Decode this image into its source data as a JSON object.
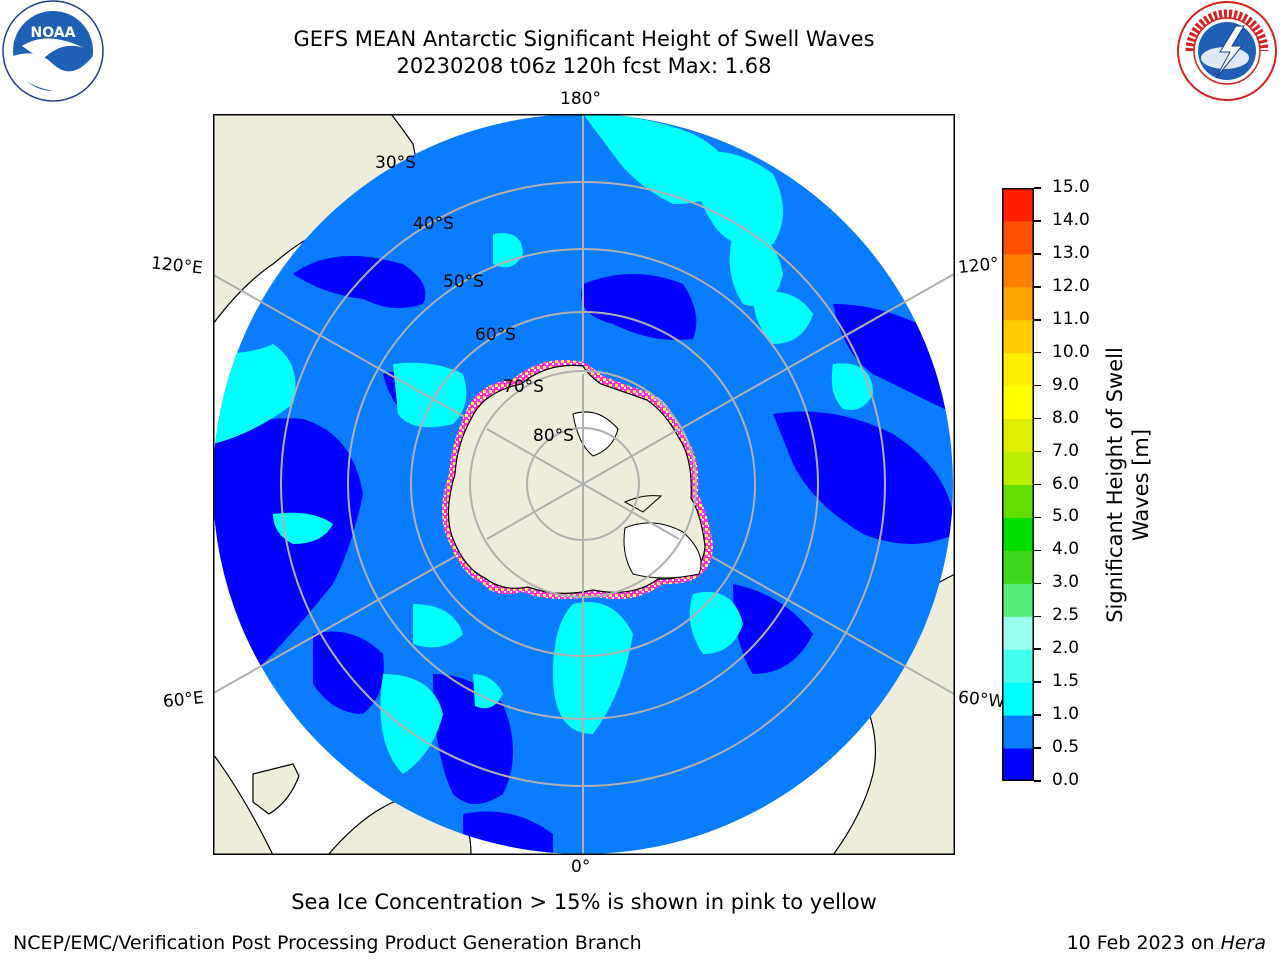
{
  "header": {
    "title_line1": "GEFS MEAN Antarctic Significant Height of Swell Waves",
    "title_line2": "20230208 t06z 120h fcst   Max: 1.68"
  },
  "logos": {
    "noaa_text": "NOAA",
    "nws_text": "NATIONAL WEATHER SERVICE"
  },
  "map": {
    "projection": "south-polar-stereographic",
    "longitude_labels": {
      "top": "180°",
      "bottom": "0°",
      "upper_left": "120°E",
      "upper_right": "120°",
      "lower_left": "60°E",
      "lower_right": "60°W"
    },
    "latitude_labels": [
      "30°S",
      "40°S",
      "50°S",
      "60°S",
      "70°S",
      "80°S"
    ],
    "colors": {
      "land": "#eeecdb",
      "ice_sheet": "#ffffff",
      "ocean_0_0_5": "#0000ff",
      "ocean_0_5_1_0": "#0a7cff",
      "ocean_1_0_1_5": "#00ffff",
      "sea_ice_edge": "#ff33cc",
      "grid": "#b0b0b0"
    }
  },
  "colorbar": {
    "label_line1": "Significant Height of Swell",
    "label_line2": "Waves [m]",
    "ticks": [
      "0.0",
      "0.5",
      "1.0",
      "1.5",
      "2.0",
      "2.5",
      "3.0",
      "4.0",
      "5.0",
      "6.0",
      "7.0",
      "8.0",
      "9.0",
      "10.0",
      "11.0",
      "12.0",
      "13.0",
      "14.0",
      "15.0"
    ],
    "colors": [
      "#0000ff",
      "#0a7cff",
      "#00ffff",
      "#44ffee",
      "#99ffee",
      "#55ee77",
      "#3fd81f",
      "#00dd00",
      "#66dd00",
      "#bbee00",
      "#ddee00",
      "#ffff00",
      "#ffee00",
      "#ffcc00",
      "#ffa500",
      "#ff8000",
      "#ff5000",
      "#ff2000"
    ]
  },
  "caption": "Sea Ice Concentration > 15% is shown in pink to yellow",
  "footer": {
    "left": "NCEP/EMC/Verification Post Processing Product Generation Branch",
    "right_prefix": "10 Feb 2023 on ",
    "right_machine": "Hera"
  }
}
